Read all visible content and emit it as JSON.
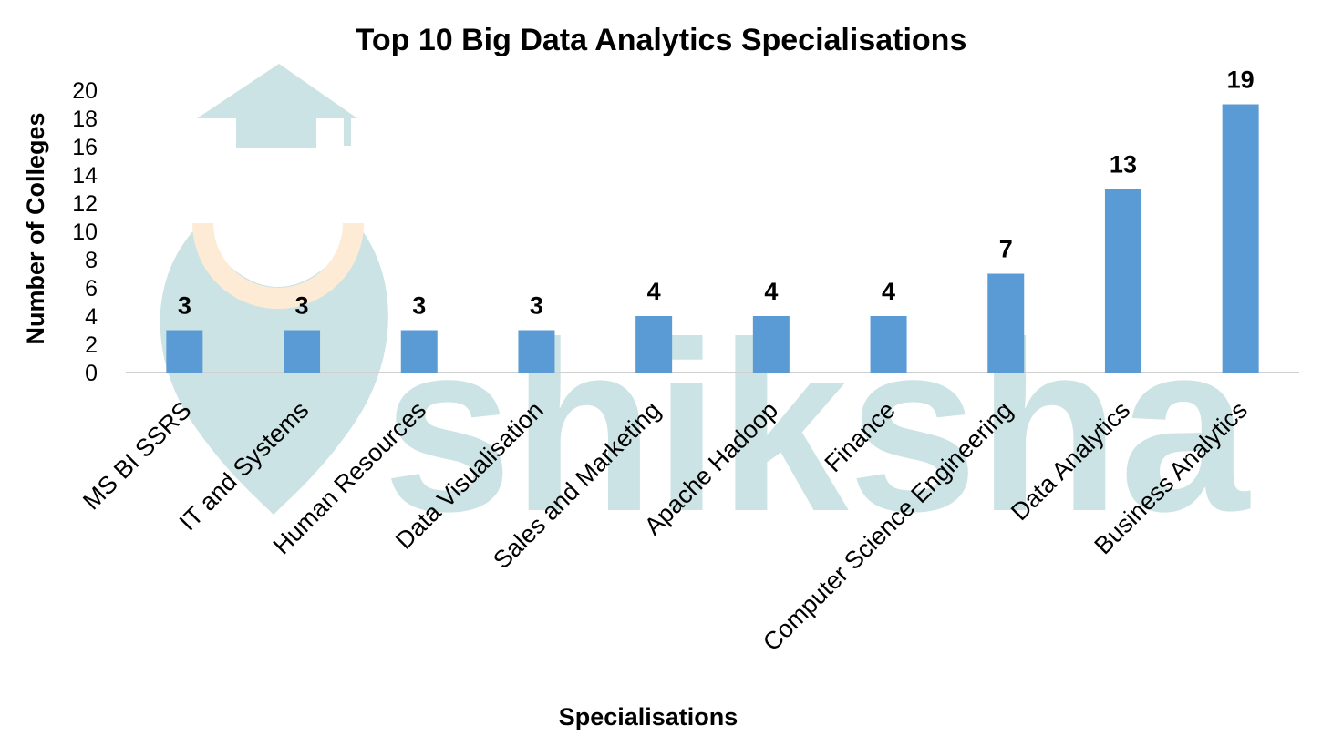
{
  "watermark": {
    "text": "shiksha"
  },
  "colors": {
    "bar": "#5b9bd5",
    "axis": "#d0d0d0",
    "watermark_teal": "#cbe3e4",
    "watermark_peach": "#fdebd6"
  },
  "chart_data": {
    "type": "bar",
    "title": "Top 10 Big Data Analytics Specialisations",
    "xlabel": "Specialisations",
    "ylabel": "Number of Colleges",
    "ylim": [
      0,
      20
    ],
    "yticks": [
      "0",
      "2",
      "4",
      "6",
      "8",
      "10",
      "12",
      "14",
      "16",
      "18",
      "20"
    ],
    "grid": false,
    "legend": "none",
    "categories": [
      "MS BI SSRS",
      "IT and Systems",
      "Human Resources",
      "Data Visualisation",
      "Sales and Marketing",
      "Apache Hadoop",
      "Finance",
      "Computer Science Engineering",
      "Data Analytics",
      "Business Analytics"
    ],
    "values": [
      3,
      3,
      3,
      3,
      4,
      4,
      4,
      7,
      13,
      19
    ]
  }
}
